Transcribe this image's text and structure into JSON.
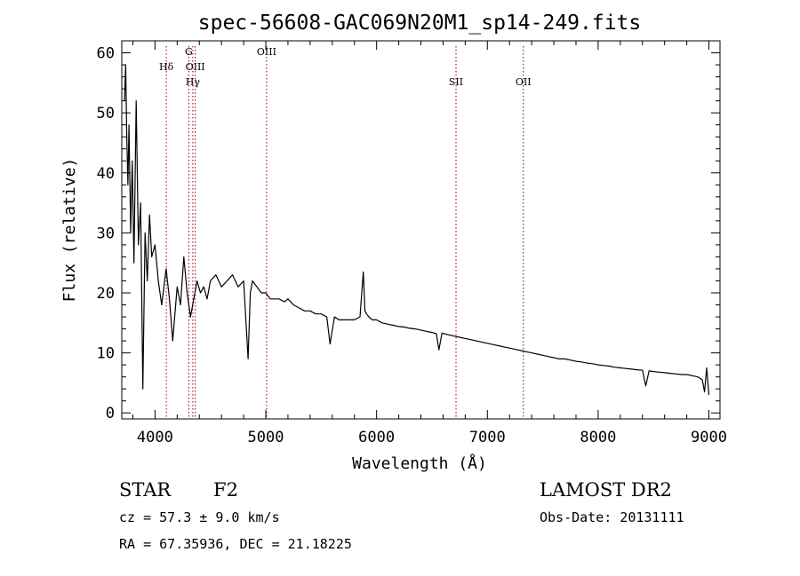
{
  "chart_data": {
    "type": "line",
    "title": "spec-56608-GAC069N20M1_sp14-249.fits",
    "xlabel": "Wavelength (Å)",
    "ylabel": "Flux (relative)",
    "xlim": [
      3700,
      9100
    ],
    "ylim": [
      -1,
      62
    ],
    "x_ticks": [
      4000,
      5000,
      6000,
      7000,
      8000,
      9000
    ],
    "y_ticks": [
      0,
      10,
      20,
      30,
      40,
      50,
      60
    ],
    "grid": false,
    "series": [
      {
        "color": "#000000",
        "x": [
          3725,
          3735,
          3745,
          3755,
          3765,
          3780,
          3795,
          3810,
          3830,
          3850,
          3870,
          3890,
          3910,
          3930,
          3950,
          3970,
          4000,
          4030,
          4060,
          4100,
          4130,
          4160,
          4200,
          4230,
          4260,
          4290,
          4320,
          4350,
          4380,
          4410,
          4440,
          4470,
          4500,
          4550,
          4600,
          4650,
          4700,
          4750,
          4800,
          4840,
          4860,
          4880,
          4920,
          4960,
          5000,
          5040,
          5080,
          5120,
          5170,
          5200,
          5250,
          5300,
          5350,
          5400,
          5450,
          5500,
          5550,
          5580,
          5620,
          5660,
          5700,
          5750,
          5800,
          5850,
          5880,
          5895,
          5910,
          5930,
          5960,
          6000,
          6050,
          6100,
          6150,
          6200,
          6250,
          6300,
          6350,
          6400,
          6450,
          6500,
          6540,
          6563,
          6590,
          6650,
          6700,
          6750,
          6800,
          6850,
          6900,
          6950,
          7000,
          7050,
          7100,
          7150,
          7200,
          7250,
          7300,
          7350,
          7400,
          7450,
          7500,
          7550,
          7600,
          7650,
          7700,
          7750,
          7800,
          7850,
          7900,
          7950,
          8000,
          8050,
          8100,
          8150,
          8200,
          8250,
          8300,
          8350,
          8400,
          8430,
          8460,
          8500,
          8550,
          8600,
          8650,
          8700,
          8750,
          8800,
          8850,
          8900,
          8940,
          8960,
          8980,
          9000
        ],
        "y": [
          52,
          58,
          46,
          38,
          48,
          30,
          42,
          25,
          52,
          28,
          35,
          4,
          30,
          22,
          33,
          26,
          28,
          22,
          18,
          24,
          19,
          12,
          21,
          18,
          26,
          20,
          16,
          19,
          22,
          20,
          21,
          19,
          22,
          23,
          21,
          22,
          23,
          21,
          22,
          9,
          20,
          22,
          21,
          20,
          20,
          19,
          19,
          19,
          18.5,
          19,
          18,
          17.5,
          17,
          17,
          16.5,
          16.5,
          16,
          11.5,
          16,
          15.5,
          15.5,
          15.5,
          15.5,
          16,
          23.5,
          17,
          16.5,
          16,
          15.5,
          15.5,
          15,
          14.8,
          14.6,
          14.4,
          14.3,
          14.1,
          14,
          13.8,
          13.6,
          13.4,
          13.2,
          10.5,
          13.3,
          13,
          12.8,
          12.6,
          12.4,
          12.2,
          12,
          11.8,
          11.6,
          11.4,
          11.2,
          11,
          10.8,
          10.6,
          10.4,
          10.2,
          10,
          9.8,
          9.6,
          9.4,
          9.2,
          9,
          9,
          8.8,
          8.6,
          8.5,
          8.3,
          8.2,
          8,
          7.9,
          7.8,
          7.6,
          7.5,
          7.4,
          7.3,
          7.2,
          7.1,
          4.5,
          7,
          6.9,
          6.8,
          6.7,
          6.6,
          6.5,
          6.4,
          6.4,
          6.2,
          6,
          5.5,
          3.5,
          7.5,
          3
        ]
      }
    ],
    "lines": [
      {
        "label": "Hδ",
        "x": 4102,
        "label_row": 1
      },
      {
        "label": "G",
        "x": 4305,
        "label_row": 0
      },
      {
        "label": "OIII",
        "x": 4363,
        "label_row": 1
      },
      {
        "label": "Hγ",
        "x": 4341,
        "label_row": 2
      },
      {
        "label": "OIII",
        "x": 5007,
        "label_row": 0
      },
      {
        "label": "SII",
        "x": 6717,
        "label_row": 2
      },
      {
        "label": "OII",
        "x": 7325,
        "label_row": 2
      }
    ]
  },
  "info": {
    "class": "STAR",
    "subclass": "F2",
    "survey": "LAMOST DR2",
    "cz": "cz = 57.3 ± 9.0 km/s",
    "obs_date": "Obs-Date: 20131111",
    "radec": "RA =  67.35936, DEC =  21.18225"
  }
}
